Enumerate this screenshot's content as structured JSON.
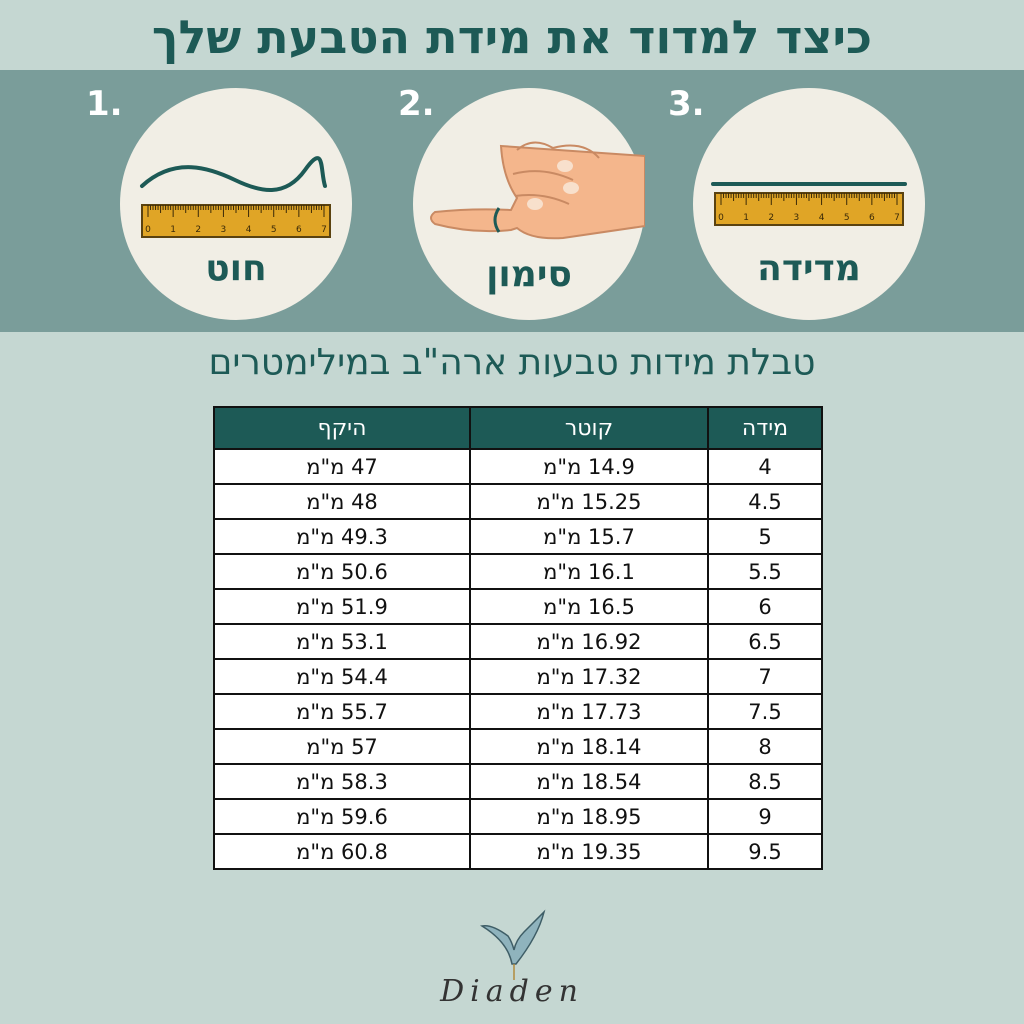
{
  "title": "כיצד למדוד את מידת הטבעת שלך",
  "steps": [
    {
      "number": "1.",
      "label": "חוט"
    },
    {
      "number": "2.",
      "label": "סימון"
    },
    {
      "number": "3.",
      "label": "מדידה"
    }
  ],
  "ruler_ticks": [
    "0",
    "1",
    "2",
    "3",
    "4",
    "5",
    "6",
    "7"
  ],
  "table_title": "טבלת מידות טבעות ארה\"ב במילימטרים",
  "table": {
    "headers": [
      "מידה",
      "קוטר",
      "היקף"
    ],
    "rows": [
      [
        "4",
        "14.9 מ\"מ",
        "47 מ\"מ"
      ],
      [
        "4.5",
        "15.25 מ\"מ",
        "48 מ\"מ"
      ],
      [
        "5",
        "15.7 מ\"מ",
        "49.3 מ\"מ"
      ],
      [
        "5.5",
        "16.1 מ\"מ",
        "50.6 מ\"מ"
      ],
      [
        "6",
        "16.5 מ\"מ",
        "51.9 מ\"מ"
      ],
      [
        "6.5",
        "16.92 מ\"מ",
        "53.1 מ\"מ"
      ],
      [
        "7",
        "17.32 מ\"מ",
        "54.4 מ\"מ"
      ],
      [
        "7.5",
        "17.73 מ\"מ",
        "55.7 מ\"מ"
      ],
      [
        "8",
        "18.14 מ\"מ",
        "57 מ\"מ"
      ],
      [
        "8.5",
        "18.54 מ\"מ",
        "58.3 מ\"מ"
      ],
      [
        "9",
        "18.95 מ\"מ",
        "59.6 מ\"מ"
      ],
      [
        "9.5",
        "19.35 מ\"מ",
        "60.8 מ\"מ"
      ]
    ]
  },
  "brand": "Diaden",
  "colors": {
    "background": "#c5d7d2",
    "band": "#7a9d9a",
    "accent": "#1d5a56",
    "ruler": "#e0a526",
    "skin": "#f4b68c"
  }
}
